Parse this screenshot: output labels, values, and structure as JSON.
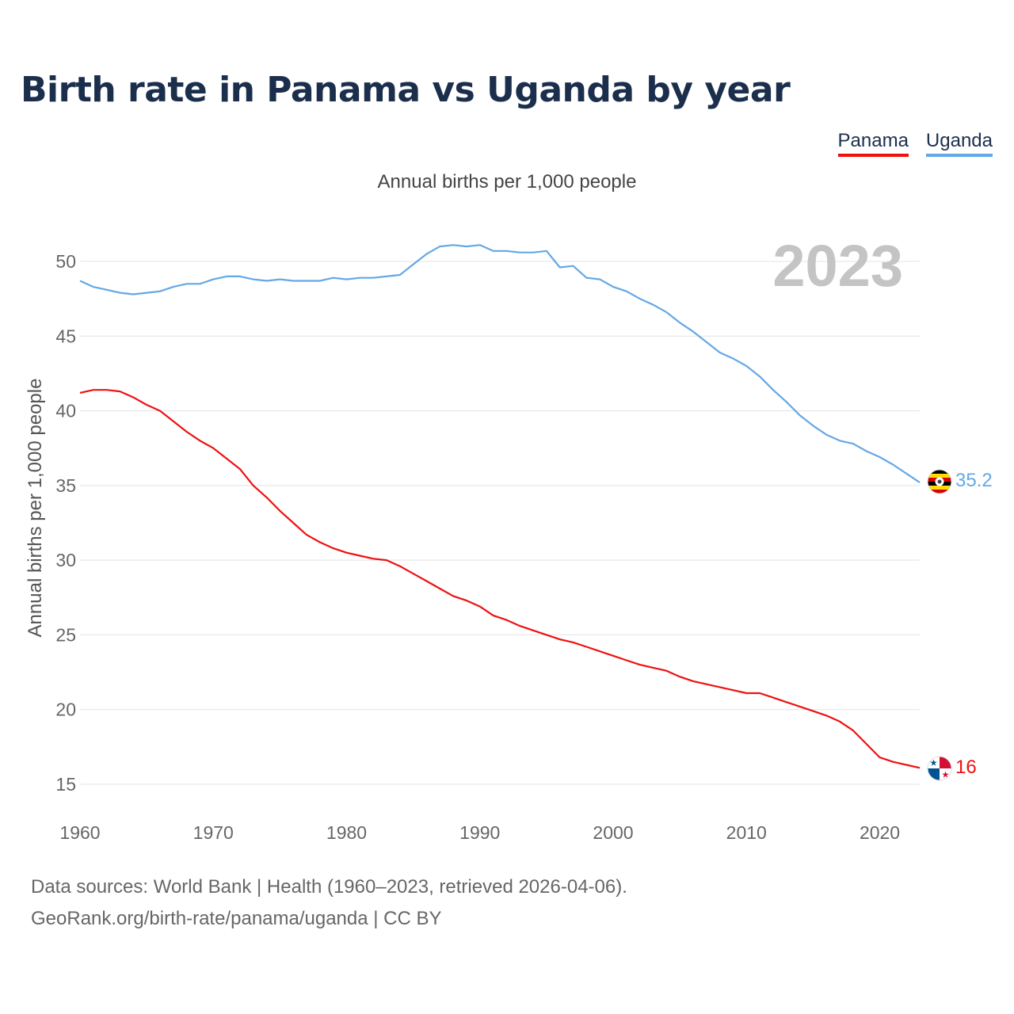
{
  "title": "Birth rate in Panama vs Uganda by year",
  "subtitle": "Annual births per 1,000 people",
  "legend": [
    {
      "name": "Panama",
      "color": "#ee1111"
    },
    {
      "name": "Uganda",
      "color": "#64a8e6"
    }
  ],
  "year_display": "2023",
  "source_line1": "Data sources: World Bank | Health (1960–2023, retrieved 2026-04-06).",
  "source_line2": "GeoRank.org/birth-rate/panama/uganda | CC BY",
  "chart_data": {
    "type": "line",
    "title": "Birth rate in Panama vs Uganda by year",
    "xlabel": "",
    "ylabel": "Annual births per 1,000 people",
    "xlim": [
      1960,
      2023
    ],
    "ylim": [
      14,
      52
    ],
    "x_ticks": [
      1960,
      1970,
      1980,
      1990,
      2000,
      2010,
      2020
    ],
    "y_ticks": [
      15,
      20,
      25,
      30,
      35,
      40,
      45,
      50
    ],
    "grid": true,
    "x": [
      1960,
      1961,
      1962,
      1963,
      1964,
      1965,
      1966,
      1967,
      1968,
      1969,
      1970,
      1971,
      1972,
      1973,
      1974,
      1975,
      1976,
      1977,
      1978,
      1979,
      1980,
      1981,
      1982,
      1983,
      1984,
      1985,
      1986,
      1987,
      1988,
      1989,
      1990,
      1991,
      1992,
      1993,
      1994,
      1995,
      1996,
      1997,
      1998,
      1999,
      2000,
      2001,
      2002,
      2003,
      2004,
      2005,
      2006,
      2007,
      2008,
      2009,
      2010,
      2011,
      2012,
      2013,
      2014,
      2015,
      2016,
      2017,
      2018,
      2019,
      2020,
      2021,
      2022,
      2023
    ],
    "series": [
      {
        "name": "Panama",
        "color": "#ee1111",
        "end_label": "16",
        "values": [
          41.2,
          41.4,
          41.4,
          41.3,
          40.9,
          40.4,
          40.0,
          39.3,
          38.6,
          38.0,
          37.5,
          36.8,
          36.1,
          35.0,
          34.2,
          33.3,
          32.5,
          31.7,
          31.2,
          30.8,
          30.5,
          30.3,
          30.1,
          30.0,
          29.6,
          29.1,
          28.6,
          28.1,
          27.6,
          27.3,
          26.9,
          26.3,
          26.0,
          25.6,
          25.3,
          25.0,
          24.7,
          24.5,
          24.2,
          23.9,
          23.6,
          23.3,
          23.0,
          22.8,
          22.6,
          22.2,
          21.9,
          21.7,
          21.5,
          21.3,
          21.1,
          21.1,
          20.8,
          20.5,
          20.2,
          19.9,
          19.6,
          19.2,
          18.6,
          17.7,
          16.8,
          16.5,
          16.3,
          16.1
        ]
      },
      {
        "name": "Uganda",
        "color": "#64a8e6",
        "end_label": "35.2",
        "values": [
          48.7,
          48.3,
          48.1,
          47.9,
          47.8,
          47.9,
          48.0,
          48.3,
          48.5,
          48.5,
          48.8,
          49.0,
          49.0,
          48.8,
          48.7,
          48.8,
          48.7,
          48.7,
          48.7,
          48.9,
          48.8,
          48.9,
          48.9,
          49.0,
          49.1,
          49.8,
          50.5,
          51.0,
          51.1,
          51.0,
          51.1,
          50.7,
          50.7,
          50.6,
          50.6,
          50.7,
          49.6,
          49.7,
          48.9,
          48.8,
          48.3,
          48.0,
          47.5,
          47.1,
          46.6,
          45.9,
          45.3,
          44.6,
          43.9,
          43.5,
          43.0,
          42.3,
          41.4,
          40.6,
          39.7,
          39.0,
          38.4,
          38.0,
          37.8,
          37.3,
          36.9,
          36.4,
          35.8,
          35.2
        ]
      }
    ]
  }
}
